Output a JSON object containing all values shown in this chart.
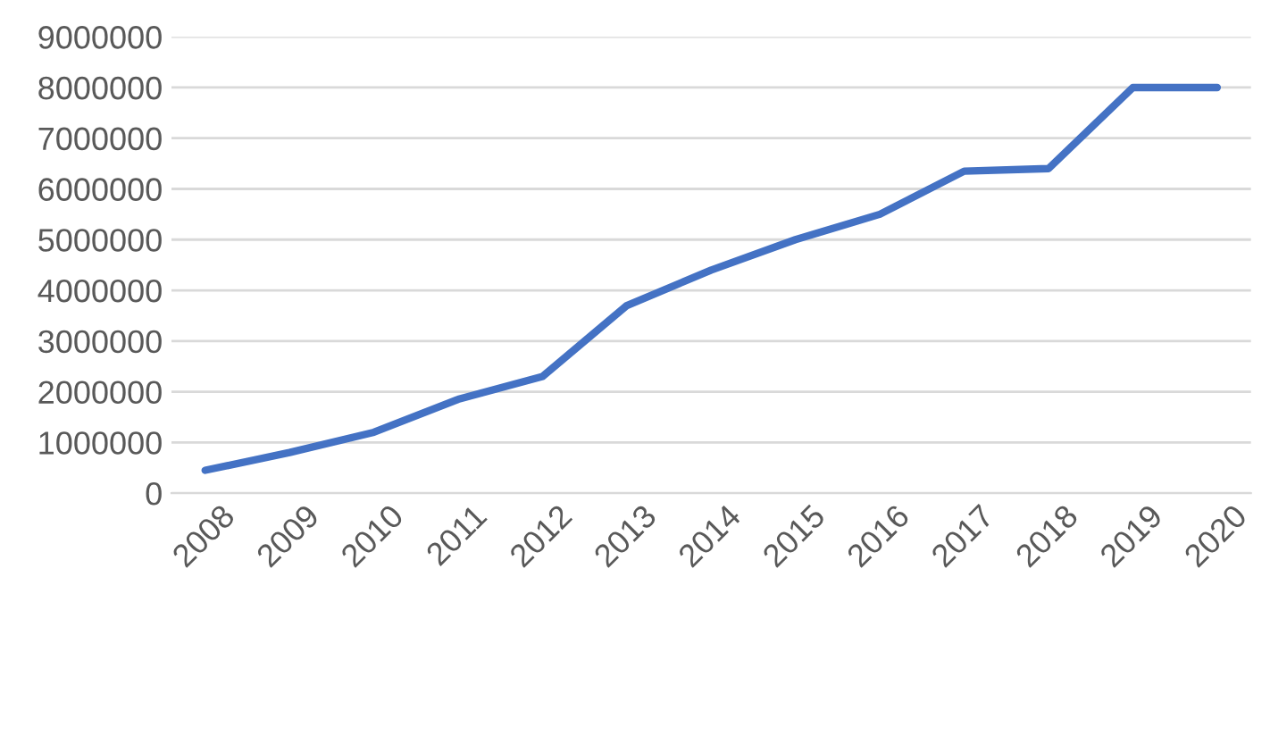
{
  "chart_data": {
    "type": "line",
    "categories": [
      "2008",
      "2009",
      "2010",
      "2011",
      "2012",
      "2013",
      "2014",
      "2015",
      "2016",
      "2017",
      "2018",
      "2019",
      "2020"
    ],
    "series": [
      {
        "color": "#4472c4",
        "values": [
          450000,
          800000,
          1200000,
          1850000,
          2300000,
          3700000,
          4400000,
          5000000,
          5500000,
          6350000,
          6400000,
          8000000,
          8000000
        ]
      }
    ],
    "ylim": [
      0,
      9000000
    ],
    "yticks": [
      0,
      1000000,
      2000000,
      3000000,
      4000000,
      5000000,
      6000000,
      7000000,
      8000000,
      9000000
    ],
    "grid": "y",
    "marker": "none",
    "line_style": "solid"
  }
}
